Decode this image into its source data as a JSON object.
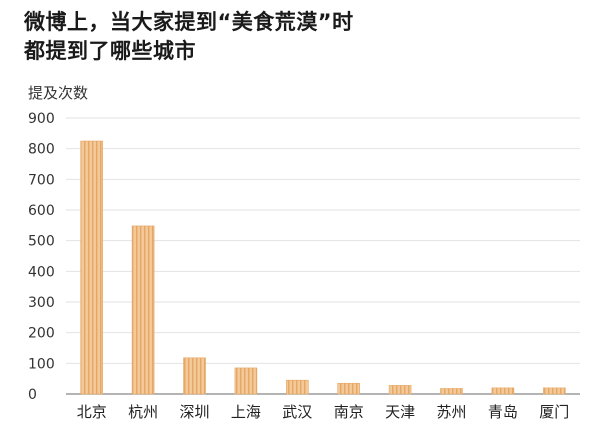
{
  "title_lines": [
    "微博上，当大家提到“美食荒漠”时",
    "都提到了哪些城市"
  ],
  "colors": {
    "bar": "#f3c99a",
    "bar_stripe": "#e6a764",
    "grid": "#e2e2e2",
    "axis": "#888888"
  },
  "chart_data": {
    "type": "bar",
    "title": "微博上，当大家提到“美食荒漠”时都提到了哪些城市",
    "ylabel": "提及次数",
    "xlabel": "",
    "ylim": [
      0,
      900
    ],
    "yticks": [
      0,
      100,
      200,
      300,
      400,
      500,
      600,
      700,
      800,
      900
    ],
    "categories": [
      "北京",
      "杭州",
      "深圳",
      "上海",
      "武汉",
      "南京",
      "天津",
      "苏州",
      "青岛",
      "厦门"
    ],
    "values": [
      825,
      548,
      118,
      85,
      45,
      35,
      28,
      18,
      20,
      20
    ],
    "grid": true,
    "legend": "none"
  }
}
